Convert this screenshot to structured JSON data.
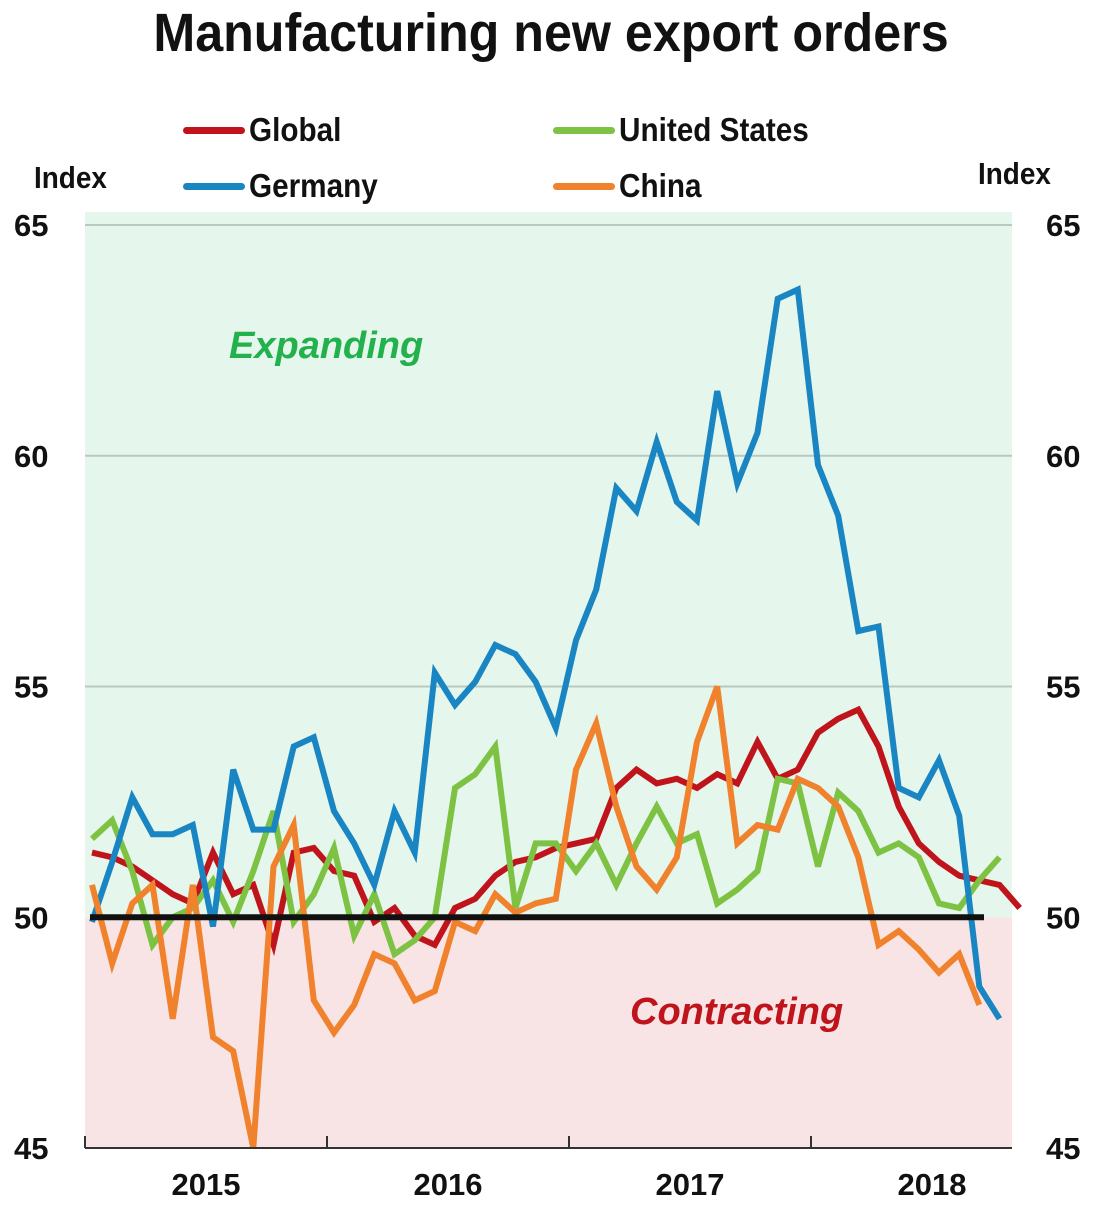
{
  "title": "Manufacturing new export orders",
  "left_axis_unit": "Index",
  "right_axis_unit": "Index",
  "legend": [
    {
      "name": "Global",
      "color": "#c0141c"
    },
    {
      "name": "United States",
      "color": "#7dc242"
    },
    {
      "name": "Germany",
      "color": "#1a85c3"
    },
    {
      "name": "China",
      "color": "#f0822d"
    }
  ],
  "annotations": {
    "expanding": {
      "text": "Expanding",
      "color": "#22b14c"
    },
    "contracting": {
      "text": "Contracting",
      "color": "#c0141c"
    }
  },
  "colors": {
    "expanding_bg": "#e5f6ec",
    "contracting_bg": "#f8e4e4",
    "threshold_line": "#111111",
    "gridline": "#b9c9bf"
  },
  "chart_data": {
    "type": "line",
    "title": "Manufacturing new export orders",
    "xlabel": "",
    "ylabel": "Index",
    "ylabel_right": "Index",
    "ylim": [
      45,
      65
    ],
    "yticks": [
      45,
      50,
      55,
      60,
      65
    ],
    "xticks": [
      "2015",
      "2016",
      "2017",
      "2018"
    ],
    "x_start": "2015-01",
    "x_frequency": "monthly",
    "threshold": 50,
    "grid": true,
    "legend_position": "top",
    "series": [
      {
        "name": "Global",
        "color": "#c0141c",
        "values": [
          51.4,
          51.3,
          51.1,
          50.8,
          50.5,
          50.3,
          51.4,
          50.5,
          50.7,
          49.4,
          51.4,
          51.5,
          51.0,
          50.9,
          49.9,
          50.2,
          49.6,
          49.4,
          50.2,
          50.4,
          50.9,
          51.2,
          51.3,
          51.5,
          51.6,
          51.7,
          52.8,
          53.2,
          52.9,
          53.0,
          52.8,
          53.1,
          52.9,
          53.8,
          53.0,
          53.2,
          54.0,
          54.3,
          54.5,
          53.7,
          52.4,
          51.6,
          51.2,
          50.9,
          50.8,
          50.7,
          50.2
        ]
      },
      {
        "name": "United States",
        "color": "#7dc242",
        "values": [
          51.7,
          52.1,
          51.0,
          49.4,
          50.0,
          50.2,
          50.8,
          49.9,
          51.0,
          52.3,
          49.9,
          50.5,
          51.5,
          49.6,
          50.5,
          49.2,
          49.5,
          50.0,
          52.8,
          53.1,
          53.7,
          50.2,
          51.6,
          51.6,
          51.0,
          51.6,
          50.7,
          51.6,
          52.4,
          51.6,
          51.8,
          50.3,
          50.6,
          51.0,
          53.0,
          52.9,
          51.1,
          52.7,
          52.3,
          51.4,
          51.6,
          51.3,
          50.3,
          50.2,
          50.8,
          51.3
        ]
      },
      {
        "name": "Germany",
        "color": "#1a85c3",
        "values": [
          49.9,
          51.2,
          52.6,
          51.8,
          51.8,
          52.0,
          49.8,
          53.2,
          51.9,
          51.9,
          53.7,
          53.9,
          52.3,
          51.6,
          50.7,
          52.3,
          51.4,
          55.3,
          54.6,
          55.1,
          55.9,
          55.7,
          55.1,
          54.1,
          56.0,
          57.1,
          59.3,
          58.8,
          60.3,
          59.0,
          58.6,
          61.4,
          59.4,
          60.5,
          63.4,
          63.6,
          59.8,
          58.7,
          56.2,
          56.3,
          52.8,
          52.6,
          53.4,
          52.2,
          48.5,
          47.8
        ]
      },
      {
        "name": "China",
        "color": "#f0822d",
        "values": [
          50.7,
          49.0,
          50.3,
          50.7,
          47.8,
          50.7,
          47.4,
          47.1,
          45.0,
          51.1,
          52.0,
          48.2,
          47.5,
          48.1,
          49.2,
          49.0,
          48.2,
          48.4,
          49.9,
          49.7,
          50.5,
          50.1,
          50.3,
          50.4,
          53.2,
          54.2,
          52.4,
          51.1,
          50.6,
          51.3,
          53.8,
          55.0,
          51.6,
          52.0,
          51.9,
          53.0,
          52.8,
          52.4,
          51.3,
          49.4,
          49.7,
          49.3,
          48.8,
          49.2,
          48.1
        ]
      }
    ]
  }
}
